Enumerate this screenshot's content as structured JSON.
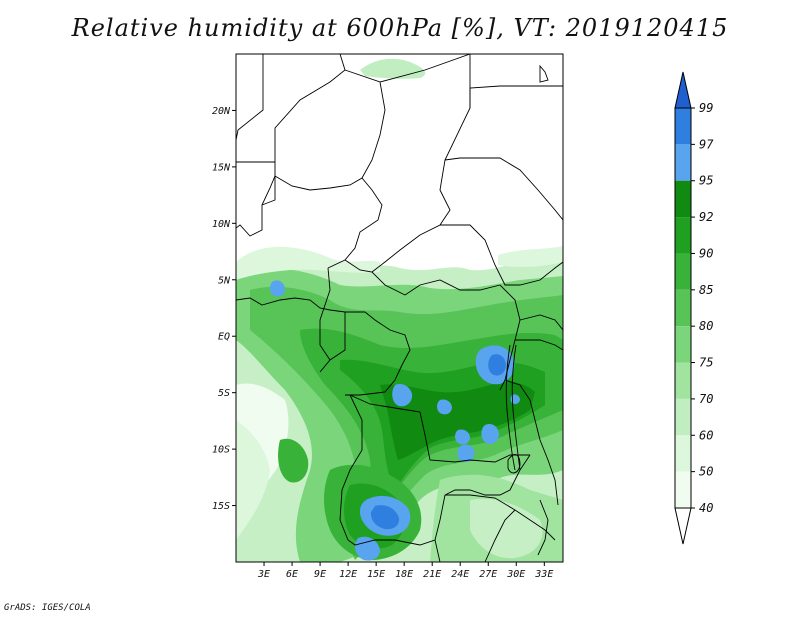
{
  "title": "Relative humidity at 600hPa [%], VT: 2019120415",
  "credit": "GrADS: IGES/COLA",
  "map": {
    "lat_labels": [
      "20N",
      "15N",
      "10N",
      "5N",
      "EQ",
      "5S",
      "10S",
      "15S"
    ],
    "lat_values": [
      20,
      15,
      10,
      5,
      0,
      -5,
      -10,
      -15
    ],
    "lon_labels": [
      "3E",
      "6E",
      "9E",
      "12E",
      "15E",
      "18E",
      "21E",
      "24E",
      "27E",
      "30E",
      "33E"
    ],
    "lon_values": [
      3,
      6,
      9,
      12,
      15,
      18,
      21,
      24,
      27,
      30,
      33
    ],
    "extent": {
      "lon_min": 0,
      "lon_max": 35,
      "lat_min": -20,
      "lat_max": 25
    }
  },
  "colorbar": {
    "levels": [
      "99",
      "97",
      "95",
      "92",
      "90",
      "85",
      "80",
      "75",
      "70",
      "60",
      "50",
      "40"
    ],
    "colors": [
      "#1f5fcf",
      "#2f7fe0",
      "#58a4ee",
      "#108a10",
      "#20a020",
      "#38b238",
      "#58c458",
      "#7bd67b",
      "#a0e4a0",
      "#c0eec0",
      "#dcf7dc",
      "#effcef"
    ],
    "top_triangle_color": "#1f5fcf",
    "bottom_triangle_color": "#ffffff"
  }
}
